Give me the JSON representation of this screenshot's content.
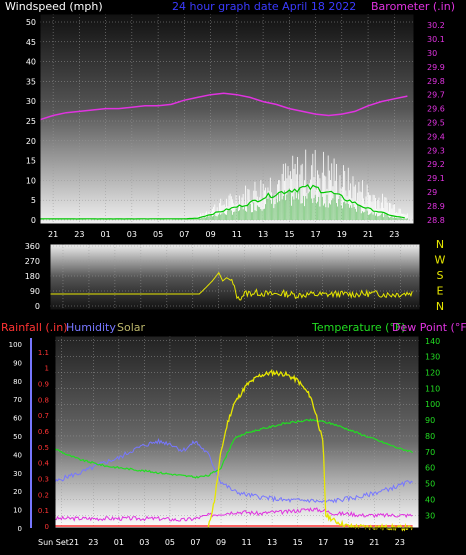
{
  "header": {
    "wind_label": "Windspeed (mph)",
    "center_label": "24 hour graph date   April 18 2022",
    "baro_label": "Barometer (.in)"
  },
  "lower_header": {
    "rain_label": "Rainfall (.in)",
    "humidity_label": "Humidity",
    "solar_label": "Solar",
    "temp_label": "Temperature (°F)",
    "dew_label": "Dew Point (°F)"
  },
  "compass_letters": [
    "N",
    "W",
    "S",
    "E",
    "N"
  ],
  "colors": {
    "wind_label": "#ffffff",
    "center_label": "#3b3bff",
    "barometer": "#e033e0",
    "wind_gust": "#ffffff",
    "wind_avg": "#7ac87a",
    "wind_avg_line": "#00c800",
    "wind_dir": "#e6e600",
    "rain": "#ff3333",
    "humidity": "#7777ff",
    "solar": "#e6e600",
    "temperature": "#22dd22",
    "dew_point": "#e033e0",
    "panel_top": "#ffffff",
    "panel_bottom": "#222222"
  },
  "chart_data": [
    {
      "type": "line",
      "name_label": "wind-barometer",
      "x_hours": [
        20,
        21,
        22,
        23,
        24,
        25,
        26,
        27,
        28,
        29,
        30,
        31,
        32,
        33,
        34,
        35,
        36,
        37,
        38,
        39,
        40,
        41,
        42,
        43,
        44,
        45,
        46,
        47,
        48
      ],
      "x_tick_labels": [
        "21",
        "23",
        "01",
        "03",
        "05",
        "07",
        "09",
        "11",
        "13",
        "15",
        "17",
        "19",
        "21",
        "23"
      ],
      "x_tick_hours": [
        21,
        23,
        25,
        27,
        29,
        31,
        33,
        35,
        37,
        39,
        41,
        43,
        45,
        47
      ],
      "x_range": [
        20,
        48.5
      ],
      "left_axis": {
        "label": "Windspeed (mph)",
        "ticks": [
          0,
          5,
          10,
          15,
          20,
          25,
          30,
          35,
          40,
          45,
          50
        ],
        "range": [
          0,
          50
        ]
      },
      "right_axis": {
        "label": "Barometer (.in)",
        "ticks": [
          28.8,
          28.9,
          29.0,
          29.1,
          29.2,
          29.3,
          29.4,
          29.5,
          29.6,
          29.7,
          29.8,
          29.9,
          30.0,
          30.1,
          30.2
        ],
        "tick_labels": [
          "28.8",
          "28.9",
          "29",
          "29.1",
          "29.2",
          "29.3",
          "29.4",
          "29.5",
          "29.6",
          "29.7",
          "29.8",
          "29.9",
          "30",
          "30.1",
          "30.2"
        ],
        "range": [
          28.77,
          30.28
        ]
      },
      "series": [
        {
          "key": "barometer",
          "axis": "right",
          "values": [
            29.52,
            29.55,
            29.57,
            29.58,
            29.59,
            29.6,
            29.6,
            29.61,
            29.62,
            29.62,
            29.63,
            29.66,
            29.68,
            29.7,
            29.71,
            29.7,
            29.68,
            29.65,
            29.63,
            29.6,
            29.58,
            29.56,
            29.55,
            29.56,
            29.58,
            29.62,
            29.65,
            29.67,
            29.69
          ]
        },
        {
          "key": "wind_gust",
          "axis": "left",
          "values": [
            0,
            0,
            0,
            0,
            0,
            0,
            0,
            0,
            0,
            0,
            0,
            0,
            1,
            4,
            6,
            8,
            10,
            12,
            14,
            16,
            18,
            19,
            18,
            15,
            12,
            10,
            7,
            5,
            3
          ]
        },
        {
          "key": "wind_avg",
          "axis": "left",
          "values": [
            0.3,
            0.3,
            0.3,
            0.3,
            0.3,
            0.3,
            0.3,
            0.3,
            0.3,
            0.3,
            0.3,
            0.3,
            0.5,
            1.5,
            2.5,
            3.5,
            4.5,
            6,
            7,
            8,
            8.5,
            8.5,
            7.5,
            6,
            4.5,
            3,
            2,
            1,
            0.5
          ]
        }
      ]
    },
    {
      "type": "line",
      "name_label": "wind-direction",
      "y_axis": {
        "ticks": [
          0,
          90,
          180,
          270,
          360
        ],
        "range": [
          0,
          360
        ]
      },
      "x_range": [
        20,
        48.5
      ],
      "series": [
        {
          "key": "wind_dir",
          "x_hours": [
            20,
            25,
            30,
            30.5,
            31,
            31.5,
            32,
            32.5,
            33,
            33.3,
            33.6,
            34,
            34.5,
            35,
            36,
            37,
            38,
            39,
            40,
            41,
            42,
            43,
            44,
            45,
            46,
            47,
            48
          ],
          "values": [
            72,
            72,
            72,
            72,
            72,
            72,
            110,
            150,
            200,
            150,
            170,
            150,
            40,
            75,
            80,
            70,
            75,
            65,
            70,
            68,
            72,
            70,
            72,
            75,
            68,
            72,
            80
          ]
        }
      ]
    },
    {
      "type": "line",
      "name_label": "rain-humidity-solar-temperature-dewpoint",
      "x_tick_labels": [
        "Sun Set21",
        "23",
        "01",
        "03",
        "05",
        "07",
        "09",
        "11",
        "13",
        "15",
        "17",
        "19",
        "21",
        "23"
      ],
      "x_tick_hours": [
        20.5,
        23,
        25,
        27,
        29,
        31,
        33,
        35,
        37,
        39,
        41,
        43,
        45,
        47
      ],
      "x_range": [
        20,
        48.5
      ],
      "left_axis_rain": {
        "label": "Rainfall (.in)",
        "ticks": [
          0,
          0.1,
          0.2,
          0.3,
          0.4,
          0.5,
          0.6,
          0.7,
          0.8,
          0.9,
          1.0,
          1.1
        ],
        "tick_labels": [
          "0",
          "0.1",
          "0.2",
          "0.3",
          "0.4",
          "0.5",
          "0.6",
          "0.7",
          "0.8",
          "0.9",
          "1",
          "1.1"
        ],
        "range": [
          0,
          1.15
        ]
      },
      "left_axis_humidity": {
        "label": "Humidity",
        "ticks": [
          0,
          10,
          20,
          30,
          40,
          50,
          60,
          70,
          80,
          90,
          100
        ],
        "range": [
          0,
          100
        ]
      },
      "right_axis": {
        "label": "Temperature (°F)",
        "ticks": [
          30,
          40,
          50,
          60,
          70,
          80,
          90,
          100,
          110,
          120,
          130,
          140
        ],
        "range": [
          22,
          143
        ]
      },
      "series": [
        {
          "key": "temperature",
          "axis": "right",
          "x_hours": [
            20,
            21,
            22,
            23,
            24,
            25,
            26,
            27,
            28,
            29,
            30,
            31,
            32,
            33,
            34,
            35,
            36,
            37,
            38,
            39,
            40,
            41,
            42,
            43,
            44,
            45,
            46,
            47,
            48
          ],
          "values": [
            72,
            68,
            65,
            63,
            61,
            60,
            59,
            58,
            57,
            56,
            55,
            54,
            55,
            60,
            78,
            82,
            84,
            86,
            88,
            89,
            90,
            89,
            87,
            84,
            81,
            78,
            75,
            72,
            70
          ]
        },
        {
          "key": "dew_point",
          "axis": "right",
          "x_hours": [
            20,
            22,
            24,
            26,
            28,
            30,
            31,
            32,
            33,
            34,
            35,
            36,
            37,
            38,
            39,
            40,
            41,
            42,
            43,
            44,
            45,
            46,
            47,
            48
          ],
          "values": [
            28,
            28,
            28,
            28,
            28,
            27,
            28,
            30,
            31,
            32,
            32,
            31,
            32,
            32,
            33,
            34,
            33,
            31,
            31,
            30,
            30,
            30,
            30,
            30
          ]
        },
        {
          "key": "humidity",
          "axis": "humidity",
          "x_hours": [
            20,
            21,
            22,
            23,
            24,
            25,
            26,
            27,
            28,
            29,
            30,
            31,
            32,
            33,
            34,
            35,
            36,
            37,
            38,
            39,
            40,
            41,
            42,
            43,
            44,
            45,
            46,
            47,
            48
          ],
          "values": [
            25,
            28,
            30,
            33,
            36,
            38,
            42,
            45,
            47,
            46,
            42,
            47,
            40,
            25,
            20,
            18,
            17,
            16,
            15,
            15,
            15,
            14,
            15,
            16,
            17,
            19,
            21,
            23,
            26
          ]
        },
        {
          "key": "solar",
          "axis": "right",
          "x_hours": [
            32,
            32.5,
            33,
            33.5,
            34,
            35,
            36,
            37,
            38,
            39,
            40,
            40.5,
            41,
            41.2,
            42,
            43,
            48
          ],
          "values": [
            22,
            40,
            70,
            88,
            100,
            112,
            118,
            120,
            119,
            115,
            105,
            92,
            75,
            30,
            26,
            23,
            22
          ]
        },
        {
          "key": "rain",
          "axis": "rain",
          "x_hours": [
            20,
            48
          ],
          "values": [
            0,
            0
          ]
        }
      ]
    }
  ]
}
